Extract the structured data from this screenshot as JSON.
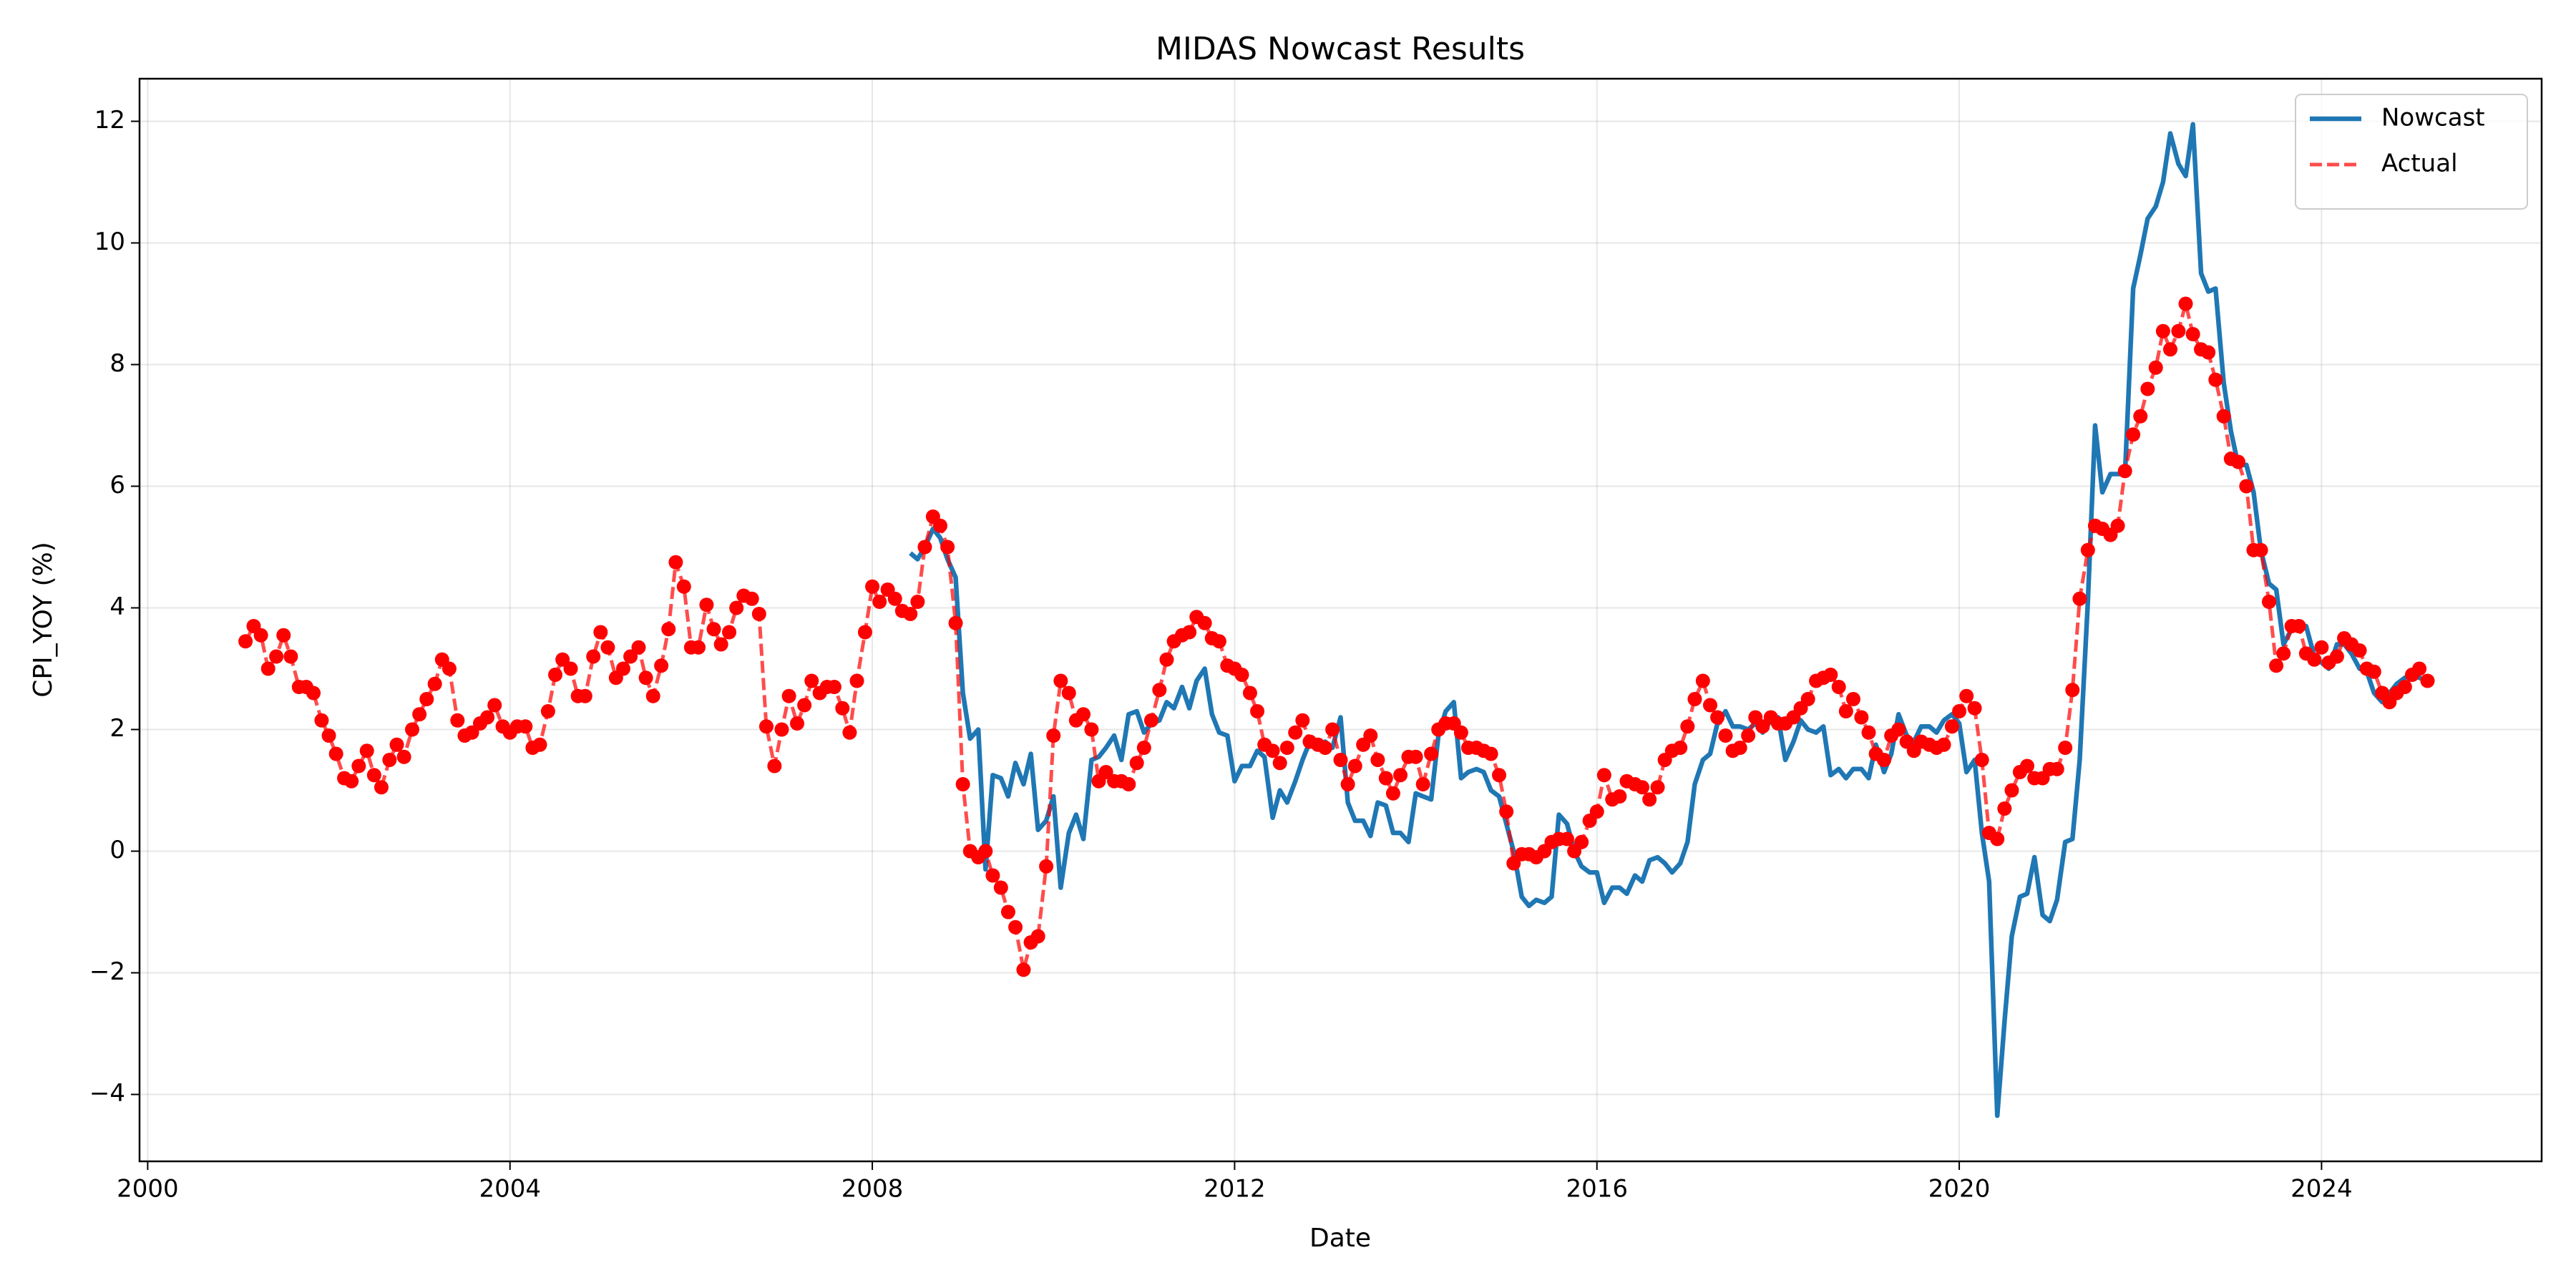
{
  "chart_data": {
    "type": "line",
    "title": "MIDAS Nowcast Results",
    "xlabel": "Date",
    "ylabel": "CPI_YOY (%)",
    "x": [
      2001.08,
      2001.17,
      2001.25,
      2001.33,
      2001.42,
      2001.5,
      2001.58,
      2001.67,
      2001.75,
      2001.83,
      2001.92,
      2002.0,
      2002.08,
      2002.17,
      2002.25,
      2002.33,
      2002.42,
      2002.5,
      2002.58,
      2002.67,
      2002.75,
      2002.83,
      2002.92,
      2003.0,
      2003.08,
      2003.17,
      2003.25,
      2003.33,
      2003.42,
      2003.5,
      2003.58,
      2003.67,
      2003.75,
      2003.83,
      2003.92,
      2004.0,
      2004.08,
      2004.17,
      2004.25,
      2004.33,
      2004.42,
      2004.5,
      2004.58,
      2004.67,
      2004.75,
      2004.83,
      2004.92,
      2005.0,
      2005.08,
      2005.17,
      2005.25,
      2005.33,
      2005.42,
      2005.5,
      2005.58,
      2005.67,
      2005.75,
      2005.83,
      2005.92,
      2006.0,
      2006.08,
      2006.17,
      2006.25,
      2006.33,
      2006.42,
      2006.5,
      2006.58,
      2006.67,
      2006.75,
      2006.83,
      2006.92,
      2007.0,
      2007.08,
      2007.17,
      2007.25,
      2007.33,
      2007.42,
      2007.5,
      2007.58,
      2007.67,
      2007.75,
      2007.83,
      2007.92,
      2008.0,
      2008.08,
      2008.17,
      2008.25,
      2008.33,
      2008.42,
      2008.5,
      2008.58,
      2008.67,
      2008.75,
      2008.83,
      2008.92,
      2009.0,
      2009.08,
      2009.17,
      2009.25,
      2009.33,
      2009.42,
      2009.5,
      2009.58,
      2009.67,
      2009.75,
      2009.83,
      2009.92,
      2010.0,
      2010.08,
      2010.17,
      2010.25,
      2010.33,
      2010.42,
      2010.5,
      2010.58,
      2010.67,
      2010.75,
      2010.83,
      2010.92,
      2011.0,
      2011.08,
      2011.17,
      2011.25,
      2011.33,
      2011.42,
      2011.5,
      2011.58,
      2011.67,
      2011.75,
      2011.83,
      2011.92,
      2012.0,
      2012.08,
      2012.17,
      2012.25,
      2012.33,
      2012.42,
      2012.5,
      2012.58,
      2012.67,
      2012.75,
      2012.83,
      2012.92,
      2013.0,
      2013.08,
      2013.17,
      2013.25,
      2013.33,
      2013.42,
      2013.5,
      2013.58,
      2013.67,
      2013.75,
      2013.83,
      2013.92,
      2014.0,
      2014.08,
      2014.17,
      2014.25,
      2014.33,
      2014.42,
      2014.5,
      2014.58,
      2014.67,
      2014.75,
      2014.83,
      2014.92,
      2015.0,
      2015.08,
      2015.17,
      2015.25,
      2015.33,
      2015.42,
      2015.5,
      2015.58,
      2015.67,
      2015.75,
      2015.83,
      2015.92,
      2016.0,
      2016.08,
      2016.17,
      2016.25,
      2016.33,
      2016.42,
      2016.5,
      2016.58,
      2016.67,
      2016.75,
      2016.83,
      2016.92,
      2017.0,
      2017.08,
      2017.17,
      2017.25,
      2017.33,
      2017.42,
      2017.5,
      2017.58,
      2017.67,
      2017.75,
      2017.83,
      2017.92,
      2018.0,
      2018.08,
      2018.17,
      2018.25,
      2018.33,
      2018.42,
      2018.5,
      2018.58,
      2018.67,
      2018.75,
      2018.83,
      2018.92,
      2019.0,
      2019.08,
      2019.17,
      2019.25,
      2019.33,
      2019.42,
      2019.5,
      2019.58,
      2019.67,
      2019.75,
      2019.83,
      2019.92,
      2020.0,
      2020.08,
      2020.17,
      2020.25,
      2020.33,
      2020.42,
      2020.5,
      2020.58,
      2020.67,
      2020.75,
      2020.83,
      2020.92,
      2021.0,
      2021.08,
      2021.17,
      2021.25,
      2021.33,
      2021.42,
      2021.5,
      2021.58,
      2021.67,
      2021.75,
      2021.83,
      2021.92,
      2022.0,
      2022.08,
      2022.17,
      2022.25,
      2022.33,
      2022.42,
      2022.5,
      2022.58,
      2022.67,
      2022.75,
      2022.83,
      2022.92,
      2023.0,
      2023.08,
      2023.17,
      2023.25,
      2023.33,
      2023.42,
      2023.5,
      2023.58,
      2023.67,
      2023.75,
      2023.83,
      2023.92,
      2024.0,
      2024.08,
      2024.17,
      2024.25,
      2024.33,
      2024.42,
      2024.5,
      2024.58,
      2024.67,
      2024.75,
      2024.83,
      2024.92,
      2025.0,
      2025.08,
      2025.17
    ],
    "series": [
      {
        "name": "Nowcast",
        "color": "#1f77b4",
        "style": "solid",
        "marker": "none",
        "values": [
          null,
          null,
          null,
          null,
          null,
          null,
          null,
          null,
          null,
          null,
          null,
          null,
          null,
          null,
          null,
          null,
          null,
          null,
          null,
          null,
          null,
          null,
          null,
          null,
          null,
          null,
          null,
          null,
          null,
          null,
          null,
          null,
          null,
          null,
          null,
          null,
          null,
          null,
          null,
          null,
          null,
          null,
          null,
          null,
          null,
          null,
          null,
          null,
          null,
          null,
          null,
          null,
          null,
          null,
          null,
          null,
          null,
          null,
          null,
          null,
          null,
          null,
          null,
          null,
          null,
          null,
          null,
          null,
          null,
          null,
          null,
          null,
          null,
          null,
          null,
          null,
          null,
          null,
          null,
          null,
          null,
          null,
          null,
          null,
          null,
          null,
          null,
          null,
          4.9,
          4.8,
          5.0,
          5.3,
          5.15,
          4.8,
          4.5,
          2.6,
          1.85,
          2.0,
          -0.3,
          1.25,
          1.2,
          0.9,
          1.45,
          1.1,
          1.6,
          0.35,
          0.5,
          0.9,
          -0.6,
          0.3,
          0.6,
          0.2,
          1.5,
          1.55,
          1.7,
          1.9,
          1.5,
          2.25,
          2.3,
          1.95,
          2.1,
          2.15,
          2.45,
          2.35,
          2.7,
          2.35,
          2.8,
          3.0,
          2.25,
          1.95,
          1.9,
          1.15,
          1.4,
          1.4,
          1.65,
          1.55,
          0.55,
          1.0,
          0.8,
          1.15,
          1.5,
          1.8,
          1.75,
          1.8,
          1.7,
          2.2,
          0.8,
          0.5,
          0.5,
          0.25,
          0.8,
          0.75,
          0.3,
          0.3,
          0.15,
          0.95,
          0.9,
          0.85,
          1.9,
          2.3,
          2.45,
          1.2,
          1.3,
          1.35,
          1.3,
          1.0,
          0.9,
          0.45,
          0.0,
          -0.75,
          -0.9,
          -0.8,
          -0.85,
          -0.75,
          0.6,
          0.45,
          0.0,
          -0.25,
          -0.35,
          -0.35,
          -0.85,
          -0.6,
          -0.6,
          -0.7,
          -0.4,
          -0.5,
          -0.15,
          -0.1,
          -0.2,
          -0.35,
          -0.2,
          0.15,
          1.1,
          1.5,
          1.6,
          2.1,
          2.3,
          2.05,
          2.05,
          2.0,
          2.1,
          1.95,
          2.15,
          2.2,
          1.5,
          1.8,
          2.15,
          2.0,
          1.95,
          2.05,
          1.25,
          1.35,
          1.2,
          1.35,
          1.35,
          1.2,
          1.75,
          1.3,
          1.6,
          2.25,
          1.9,
          1.8,
          2.05,
          2.05,
          1.95,
          2.15,
          2.25,
          2.1,
          1.3,
          1.5,
          0.3,
          -0.5,
          -4.35,
          -2.8,
          -1.4,
          -0.75,
          -0.7,
          -0.1,
          -1.05,
          -1.15,
          -0.8,
          0.15,
          0.2,
          1.5,
          4.1,
          7.0,
          5.9,
          6.2,
          6.2,
          6.2,
          9.25,
          9.8,
          10.4,
          10.6,
          11.0,
          11.8,
          11.3,
          11.1,
          11.95,
          9.5,
          9.2,
          9.25,
          7.7,
          6.9,
          6.35,
          6.35,
          5.9,
          4.95,
          4.4,
          4.3,
          3.4,
          3.65,
          3.65,
          3.7,
          3.2,
          3.1,
          3.0,
          3.4,
          3.4,
          3.25,
          3.0,
          2.95,
          2.6,
          2.45,
          2.6,
          2.75,
          2.85,
          2.9,
          2.85,
          2.8
        ]
      },
      {
        "name": "Actual",
        "color": "#ff0000",
        "style": "dashed",
        "marker": "circle",
        "values": [
          3.45,
          3.7,
          3.55,
          3.0,
          3.2,
          3.55,
          3.2,
          2.7,
          2.7,
          2.6,
          2.15,
          1.9,
          1.6,
          1.2,
          1.15,
          1.4,
          1.65,
          1.25,
          1.05,
          1.5,
          1.75,
          1.55,
          2.0,
          2.25,
          2.5,
          2.75,
          3.15,
          3.0,
          2.15,
          1.9,
          1.95,
          2.1,
          2.2,
          2.4,
          2.05,
          1.95,
          2.05,
          2.05,
          1.7,
          1.75,
          2.3,
          2.9,
          3.15,
          3.0,
          2.55,
          2.55,
          3.2,
          3.6,
          3.35,
          2.85,
          3.0,
          3.2,
          3.35,
          2.85,
          2.55,
          3.05,
          3.65,
          4.75,
          4.35,
          3.35,
          3.35,
          4.05,
          3.65,
          3.4,
          3.6,
          4.0,
          4.2,
          4.15,
          3.9,
          2.05,
          1.4,
          2.0,
          2.55,
          2.1,
          2.4,
          2.8,
          2.6,
          2.7,
          2.7,
          2.35,
          1.95,
          2.8,
          3.6,
          4.35,
          4.1,
          4.3,
          4.15,
          3.95,
          3.9,
          4.1,
          5.0,
          5.5,
          5.35,
          5.0,
          3.75,
          1.1,
          0.0,
          -0.1,
          0.0,
          -0.4,
          -0.6,
          -1.0,
          -1.25,
          -1.95,
          -1.5,
          -1.4,
          -0.25,
          1.9,
          2.8,
          2.6,
          2.15,
          2.25,
          2.0,
          1.15,
          1.3,
          1.15,
          1.15,
          1.1,
          1.45,
          1.7,
          2.15,
          2.65,
          3.15,
          3.45,
          3.55,
          3.6,
          3.85,
          3.75,
          3.5,
          3.45,
          3.05,
          3.0,
          2.9,
          2.6,
          2.3,
          1.75,
          1.65,
          1.45,
          1.7,
          1.95,
          2.15,
          1.8,
          1.75,
          1.7,
          2.0,
          1.5,
          1.1,
          1.4,
          1.75,
          1.9,
          1.5,
          1.2,
          0.95,
          1.25,
          1.55,
          1.55,
          1.1,
          1.6,
          2.0,
          2.1,
          2.1,
          1.95,
          1.7,
          1.7,
          1.65,
          1.6,
          1.25,
          0.65,
          -0.2,
          -0.05,
          -0.05,
          -0.1,
          0.0,
          0.15,
          0.2,
          0.2,
          0.0,
          0.15,
          0.5,
          0.65,
          1.25,
          0.85,
          0.9,
          1.15,
          1.1,
          1.05,
          0.85,
          1.05,
          1.5,
          1.65,
          1.7,
          2.05,
          2.5,
          2.8,
          2.4,
          2.2,
          1.9,
          1.65,
          1.7,
          1.9,
          2.2,
          2.05,
          2.2,
          2.1,
          2.1,
          2.2,
          2.35,
          2.5,
          2.8,
          2.85,
          2.9,
          2.7,
          2.3,
          2.5,
          2.2,
          1.95,
          1.6,
          1.5,
          1.9,
          2.0,
          1.8,
          1.65,
          1.8,
          1.75,
          1.7,
          1.75,
          2.05,
          2.3,
          2.55,
          2.35,
          1.5,
          0.3,
          0.2,
          0.7,
          1.0,
          1.3,
          1.4,
          1.2,
          1.2,
          1.35,
          1.35,
          1.7,
          2.65,
          4.15,
          4.95,
          5.35,
          5.3,
          5.2,
          5.35,
          6.25,
          6.85,
          7.15,
          7.6,
          7.95,
          8.55,
          8.25,
          8.55,
          9.0,
          8.5,
          8.25,
          8.2,
          7.75,
          7.15,
          6.45,
          6.4,
          6.0,
          4.95,
          4.95,
          4.1,
          3.05,
          3.25,
          3.7,
          3.7,
          3.25,
          3.15,
          3.35,
          3.1,
          3.2,
          3.5,
          3.4,
          3.3,
          3.0,
          2.95,
          2.6,
          2.45,
          2.6,
          2.7,
          2.9,
          3.0,
          2.8
        ]
      }
    ],
    "xlim": [
      1999.91,
      2026.43
    ],
    "xticks": [
      2000,
      2004,
      2008,
      2012,
      2016,
      2020,
      2024
    ],
    "ylim": [
      -5.1,
      12.7
    ],
    "yticks": [
      {
        "value": -4,
        "label": "−4"
      },
      {
        "value": -2,
        "label": "−2"
      },
      0,
      2,
      4,
      6,
      8,
      10,
      12
    ],
    "grid": true,
    "legend": "upper right"
  }
}
